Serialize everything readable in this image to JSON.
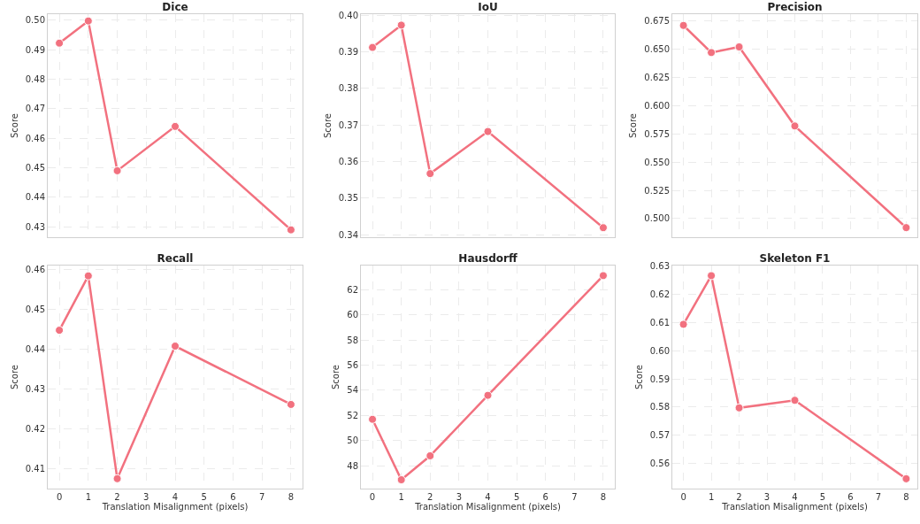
{
  "chart_data": [
    {
      "type": "line",
      "title": "Dice",
      "ylabel": "Score",
      "x": [
        0,
        1,
        2,
        4,
        8
      ],
      "series": [
        {
          "color": "#f2717f",
          "values": [
            0.4922,
            0.4997,
            0.449,
            0.464,
            0.429
          ]
        }
      ],
      "xlim": [
        -0.4,
        8.4
      ],
      "xticks": [
        0,
        1,
        2,
        3,
        4,
        5,
        6,
        7,
        8
      ],
      "ylim": [
        0.4265,
        0.502
      ],
      "yticks": [
        0.43,
        0.44,
        0.45,
        0.46,
        0.47,
        0.48,
        0.49,
        {
          "value": 0.5,
          "label": "0.50"
        }
      ],
      "tick_labels": "y",
      "grid": true,
      "legend": false,
      "marker": "circle",
      "line_style": "solid"
    },
    {
      "type": "line",
      "title": "IoU",
      "ylabel": "Score",
      "x": [
        0,
        1,
        2,
        4,
        8
      ],
      "series": [
        {
          "color": "#f2717f",
          "values": [
            0.3912,
            0.3973,
            0.3567,
            0.3682,
            0.3419
          ]
        }
      ],
      "xlim": [
        -0.4,
        8.4
      ],
      "xticks": [
        0,
        1,
        2,
        3,
        4,
        5,
        6,
        7,
        8
      ],
      "ylim": [
        0.3393,
        0.4003
      ],
      "yticks": [
        0.34,
        0.35,
        0.36,
        0.37,
        0.38,
        0.39,
        {
          "value": 0.4,
          "label": "0.40"
        }
      ],
      "tick_labels": "y",
      "grid": true,
      "legend": false,
      "marker": "circle",
      "line_style": "solid"
    },
    {
      "type": "line",
      "title": "Precision",
      "ylabel": "Score",
      "x": [
        0,
        1,
        2,
        4,
        8
      ],
      "series": [
        {
          "color": "#f2717f",
          "values": [
            0.671,
            0.647,
            0.652,
            0.582,
            0.492
          ]
        }
      ],
      "xlim": [
        -0.4,
        8.4
      ],
      "xticks": [
        0,
        1,
        2,
        3,
        4,
        5,
        6,
        7,
        8
      ],
      "ylim": [
        0.4835,
        0.681
      ],
      "yticks": [
        {
          "value": 0.5,
          "label": "0.500"
        },
        0.525,
        {
          "value": 0.55,
          "label": "0.550"
        },
        0.575,
        {
          "value": 0.6,
          "label": "0.600"
        },
        0.625,
        {
          "value": 0.65,
          "label": "0.650"
        },
        0.675
      ],
      "tick_labels": "y",
      "grid": true,
      "legend": false,
      "marker": "circle",
      "line_style": "solid"
    },
    {
      "type": "line",
      "title": "Recall",
      "xlabel": "Translation Misalignment (pixels)",
      "ylabel": "Score",
      "x": [
        0,
        1,
        2,
        4,
        8
      ],
      "series": [
        {
          "color": "#f2717f",
          "values": [
            0.4448,
            0.4585,
            0.4074,
            0.4408,
            0.4261
          ]
        }
      ],
      "xlim": [
        -0.4,
        8.4
      ],
      "xticks": [
        0,
        1,
        2,
        3,
        4,
        5,
        6,
        7,
        8
      ],
      "ylim": [
        0.4049,
        0.4611
      ],
      "yticks": [
        0.41,
        0.42,
        0.43,
        0.44,
        0.45,
        0.46
      ],
      "grid": true,
      "legend": false,
      "marker": "circle",
      "line_style": "solid"
    },
    {
      "type": "line",
      "title": "Hausdorff",
      "xlabel": "Translation Misalignment (pixels)",
      "ylabel": "Score",
      "x": [
        0,
        1,
        2,
        4,
        8
      ],
      "series": [
        {
          "color": "#f2717f",
          "values": [
            51.7,
            46.9,
            48.8,
            53.6,
            63.1
          ]
        }
      ],
      "xlim": [
        -0.4,
        8.4
      ],
      "xticks": [
        0,
        1,
        2,
        3,
        4,
        5,
        6,
        7,
        8
      ],
      "ylim": [
        46.2,
        63.9
      ],
      "yticks": [
        48,
        50,
        52,
        54,
        56,
        58,
        60,
        62
      ],
      "grid": true,
      "legend": false,
      "marker": "circle",
      "line_style": "solid"
    },
    {
      "type": "line",
      "title": "Skeleton F1",
      "xlabel": "Translation Misalignment (pixels)",
      "ylabel": "Score",
      "x": [
        0,
        1,
        2,
        4,
        8
      ],
      "series": [
        {
          "color": "#f2717f",
          "values": [
            0.6094,
            0.6267,
            0.5797,
            0.5824,
            0.5545
          ]
        }
      ],
      "xlim": [
        -0.4,
        8.4
      ],
      "xticks": [
        0,
        1,
        2,
        3,
        4,
        5,
        6,
        7,
        8
      ],
      "ylim": [
        0.551,
        0.6303
      ],
      "yticks": [
        0.56,
        0.57,
        0.58,
        0.59,
        {
          "value": 0.6,
          "label": "0.60"
        },
        0.61,
        0.62,
        0.63
      ],
      "grid": true,
      "legend": false,
      "marker": "circle",
      "line_style": "solid"
    }
  ]
}
